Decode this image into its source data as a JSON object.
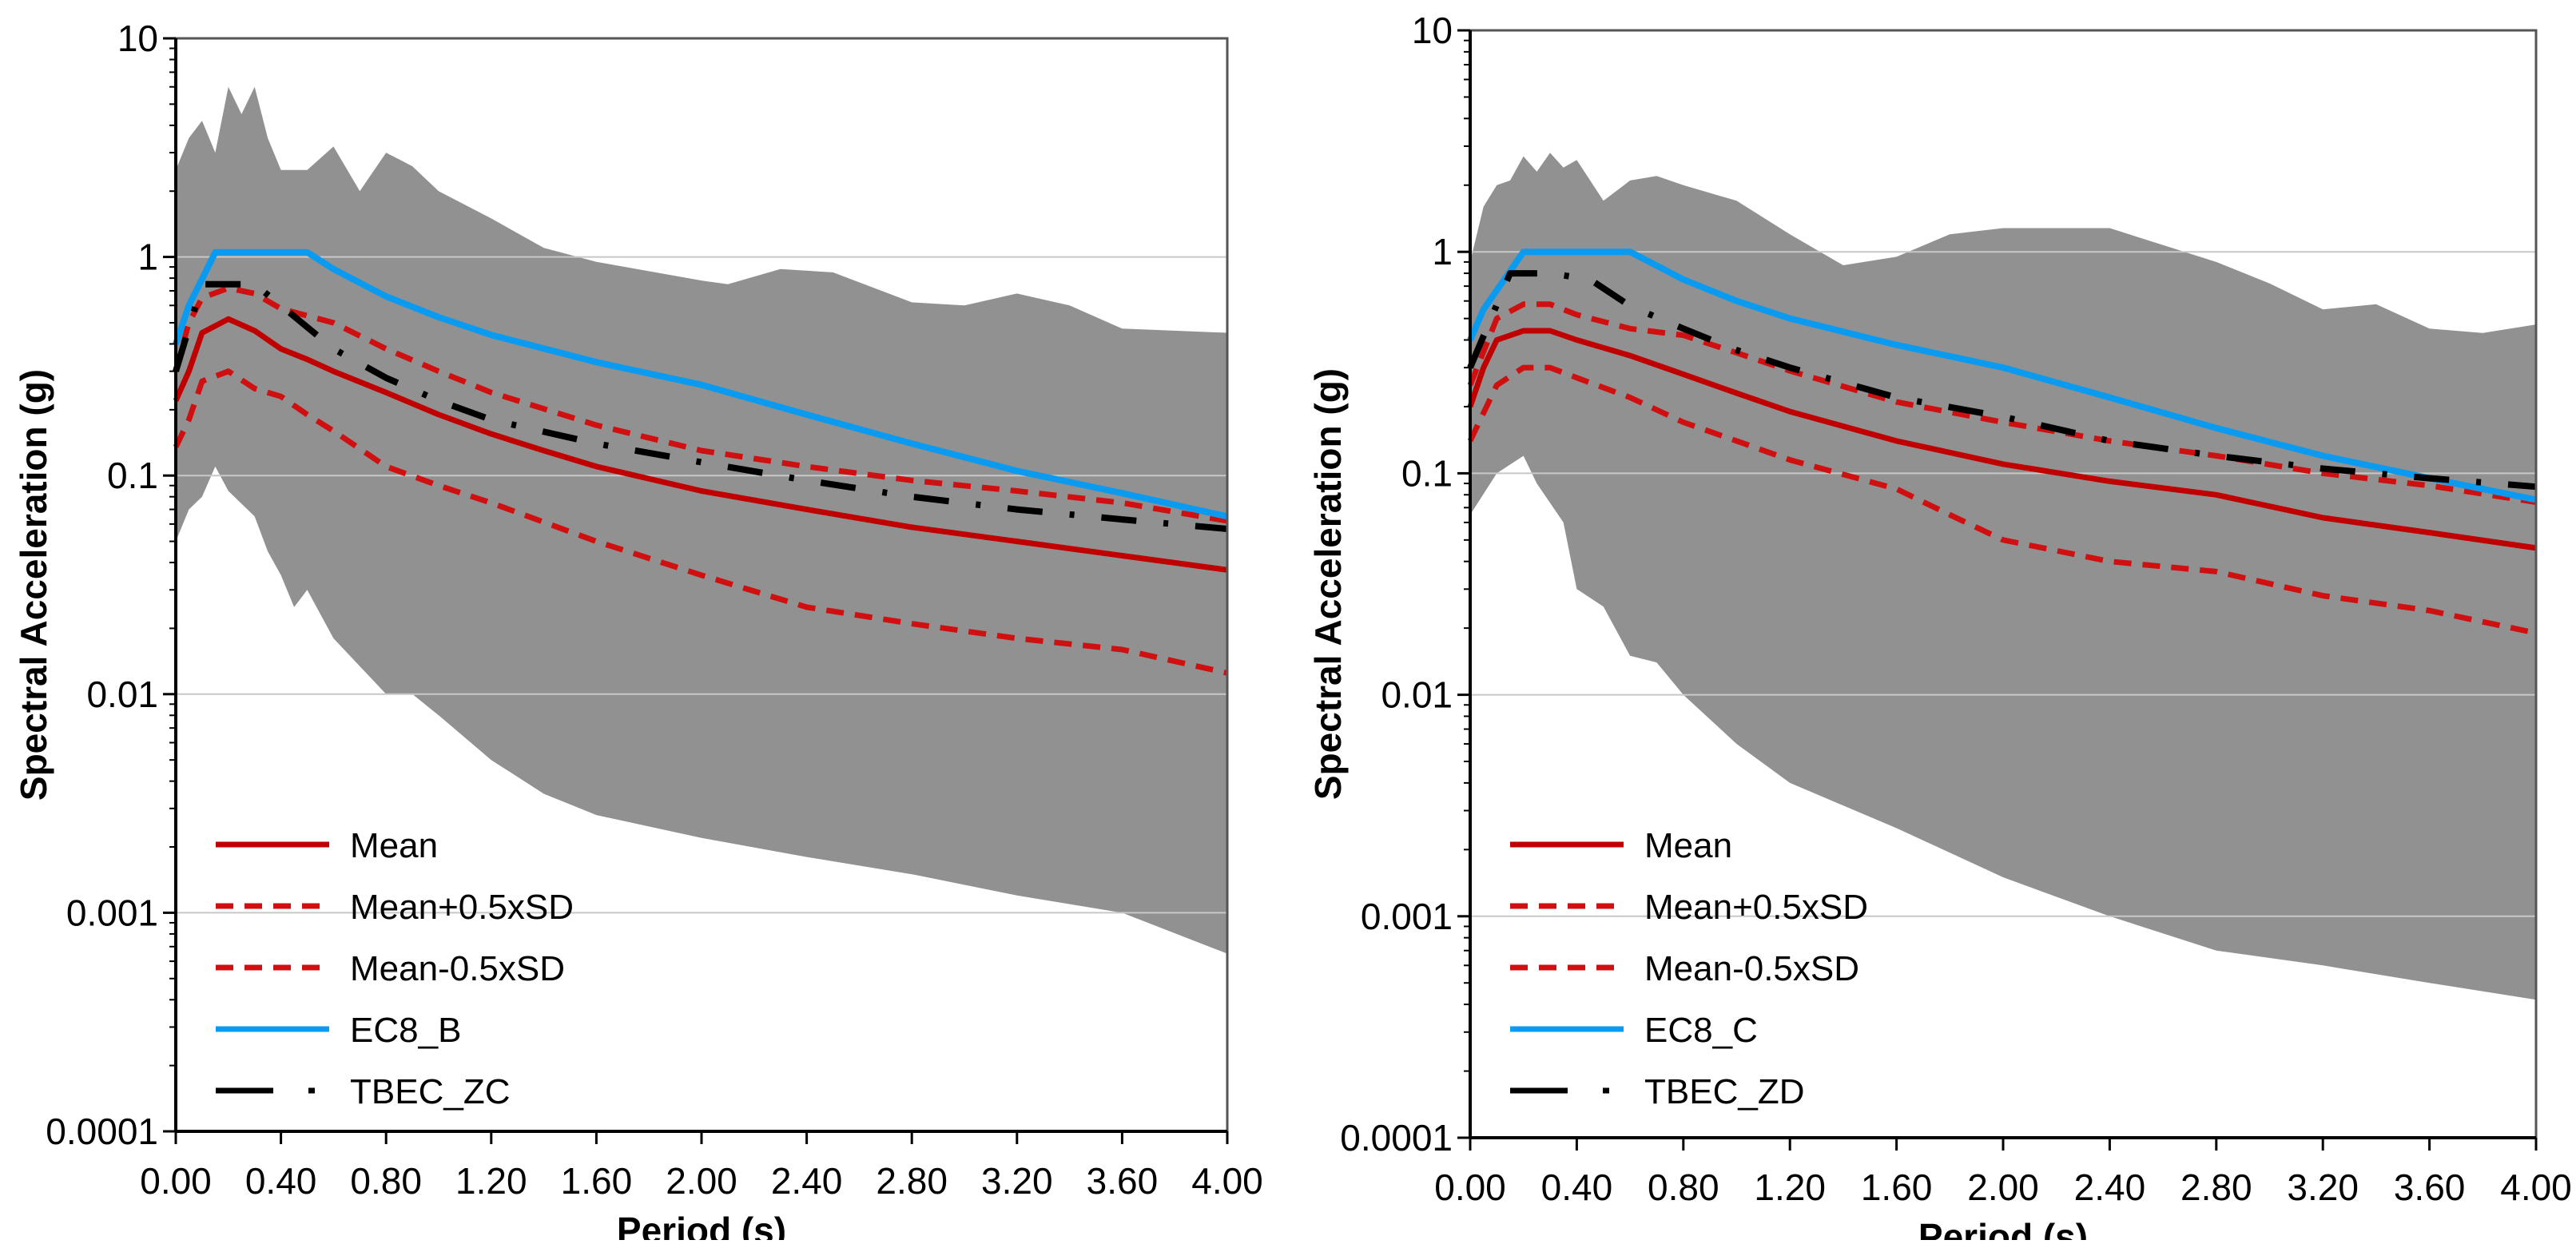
{
  "chart_data": [
    {
      "type": "line",
      "xlabel": "Period (s)",
      "ylabel": "Spectral Acceleration (g)",
      "xlim": [
        0,
        4
      ],
      "ylim": [
        0.0001,
        10
      ],
      "yscale": "log",
      "x_ticks": [
        "0.00",
        "0.40",
        "0.80",
        "1.20",
        "1.60",
        "2.00",
        "2.40",
        "2.80",
        "3.20",
        "3.60",
        "4.00"
      ],
      "y_ticks": [
        "0.0001",
        "0.001",
        "0.01",
        "0.1",
        "1",
        "10"
      ],
      "grid": "horizontal decades",
      "legend_position": "bottom-left",
      "envelope": {
        "upper": [
          [
            0,
            2.5
          ],
          [
            0.05,
            3.5
          ],
          [
            0.1,
            4.2
          ],
          [
            0.15,
            3.0
          ],
          [
            0.2,
            6.0
          ],
          [
            0.25,
            4.5
          ],
          [
            0.3,
            6.0
          ],
          [
            0.35,
            3.5
          ],
          [
            0.4,
            2.5
          ],
          [
            0.5,
            2.5
          ],
          [
            0.6,
            3.2
          ],
          [
            0.7,
            2.0
          ],
          [
            0.8,
            3.0
          ],
          [
            0.9,
            2.6
          ],
          [
            1.0,
            2.0
          ],
          [
            1.2,
            1.5
          ],
          [
            1.4,
            1.1
          ],
          [
            1.6,
            0.95
          ],
          [
            2.0,
            0.78
          ],
          [
            2.1,
            0.75
          ],
          [
            2.3,
            0.88
          ],
          [
            2.5,
            0.85
          ],
          [
            2.8,
            0.62
          ],
          [
            3.0,
            0.6
          ],
          [
            3.2,
            0.68
          ],
          [
            3.4,
            0.6
          ],
          [
            3.6,
            0.47
          ],
          [
            4.0,
            0.45
          ]
        ],
        "lower": [
          [
            0,
            0.05
          ],
          [
            0.05,
            0.07
          ],
          [
            0.1,
            0.08
          ],
          [
            0.15,
            0.11
          ],
          [
            0.2,
            0.085
          ],
          [
            0.3,
            0.065
          ],
          [
            0.35,
            0.045
          ],
          [
            0.4,
            0.035
          ],
          [
            0.45,
            0.025
          ],
          [
            0.5,
            0.03
          ],
          [
            0.6,
            0.018
          ],
          [
            0.8,
            0.01
          ],
          [
            0.9,
            0.01
          ],
          [
            1.0,
            0.008
          ],
          [
            1.2,
            0.005
          ],
          [
            1.4,
            0.0035
          ],
          [
            1.6,
            0.0028
          ],
          [
            2.0,
            0.0022
          ],
          [
            2.4,
            0.0018
          ],
          [
            2.8,
            0.0015
          ],
          [
            3.2,
            0.0012
          ],
          [
            3.6,
            0.001
          ],
          [
            4.0,
            0.00065
          ]
        ]
      },
      "series": [
        {
          "name": "Mean",
          "style": "solid",
          "color": "#c00000",
          "points": [
            [
              0,
              0.22
            ],
            [
              0.05,
              0.3
            ],
            [
              0.1,
              0.45
            ],
            [
              0.2,
              0.52
            ],
            [
              0.3,
              0.46
            ],
            [
              0.4,
              0.38
            ],
            [
              0.5,
              0.34
            ],
            [
              0.6,
              0.3
            ],
            [
              0.8,
              0.24
            ],
            [
              1.0,
              0.19
            ],
            [
              1.2,
              0.155
            ],
            [
              1.4,
              0.13
            ],
            [
              1.6,
              0.11
            ],
            [
              2.0,
              0.085
            ],
            [
              2.4,
              0.07
            ],
            [
              2.8,
              0.058
            ],
            [
              3.2,
              0.05
            ],
            [
              3.6,
              0.043
            ],
            [
              4.0,
              0.037
            ]
          ]
        },
        {
          "name": "Mean+0.5xSD",
          "style": "dashed",
          "color": "#d01010",
          "points": [
            [
              0,
              0.3
            ],
            [
              0.05,
              0.5
            ],
            [
              0.1,
              0.65
            ],
            [
              0.2,
              0.72
            ],
            [
              0.3,
              0.68
            ],
            [
              0.4,
              0.58
            ],
            [
              0.6,
              0.5
            ],
            [
              0.8,
              0.38
            ],
            [
              1.0,
              0.3
            ],
            [
              1.2,
              0.24
            ],
            [
              1.6,
              0.17
            ],
            [
              2.0,
              0.13
            ],
            [
              2.4,
              0.11
            ],
            [
              2.8,
              0.095
            ],
            [
              3.2,
              0.085
            ],
            [
              3.6,
              0.075
            ],
            [
              4.0,
              0.062
            ]
          ]
        },
        {
          "name": "Mean-0.5xSD",
          "style": "dashed",
          "color": "#d01010",
          "points": [
            [
              0,
              0.135
            ],
            [
              0.05,
              0.18
            ],
            [
              0.1,
              0.27
            ],
            [
              0.2,
              0.3
            ],
            [
              0.3,
              0.25
            ],
            [
              0.4,
              0.23
            ],
            [
              0.5,
              0.19
            ],
            [
              0.6,
              0.16
            ],
            [
              0.8,
              0.11
            ],
            [
              1.0,
              0.09
            ],
            [
              1.2,
              0.075
            ],
            [
              1.6,
              0.05
            ],
            [
              2.0,
              0.035
            ],
            [
              2.4,
              0.025
            ],
            [
              2.8,
              0.021
            ],
            [
              3.2,
              0.018
            ],
            [
              3.6,
              0.016
            ],
            [
              4.0,
              0.0125
            ]
          ]
        },
        {
          "name": "EC8_B",
          "style": "solid",
          "color": "#0a9bf0",
          "points": [
            [
              0,
              0.4
            ],
            [
              0.05,
              0.6
            ],
            [
              0.15,
              1.05
            ],
            [
              0.5,
              1.05
            ],
            [
              0.6,
              0.88
            ],
            [
              0.8,
              0.66
            ],
            [
              1.0,
              0.53
            ],
            [
              1.2,
              0.44
            ],
            [
              1.6,
              0.33
            ],
            [
              2.0,
              0.26
            ],
            [
              2.4,
              0.19
            ],
            [
              2.8,
              0.14
            ],
            [
              3.2,
              0.105
            ],
            [
              3.6,
              0.083
            ],
            [
              4.0,
              0.065
            ]
          ]
        },
        {
          "name": "TBEC_ZC",
          "style": "dashdot",
          "color": "#000000",
          "points": [
            [
              0,
              0.3
            ],
            [
              0.1,
              0.75
            ],
            [
              0.3,
              0.75
            ],
            [
              0.4,
              0.6
            ],
            [
              0.6,
              0.38
            ],
            [
              0.8,
              0.28
            ],
            [
              1.0,
              0.22
            ],
            [
              1.2,
              0.18
            ],
            [
              1.6,
              0.14
            ],
            [
              2.0,
              0.115
            ],
            [
              2.4,
              0.095
            ],
            [
              2.8,
              0.08
            ],
            [
              3.2,
              0.07
            ],
            [
              3.6,
              0.063
            ],
            [
              4.0,
              0.057
            ]
          ]
        }
      ]
    },
    {
      "type": "line",
      "xlabel": "Period (s)",
      "ylabel": "Spectral Acceleration (g)",
      "xlim": [
        0,
        4
      ],
      "ylim": [
        0.0001,
        10
      ],
      "yscale": "log",
      "x_ticks": [
        "0.00",
        "0.40",
        "0.80",
        "1.20",
        "1.60",
        "2.00",
        "2.40",
        "2.80",
        "3.20",
        "3.60",
        "4.00"
      ],
      "y_ticks": [
        "0.0001",
        "0.001",
        "0.01",
        "0.1",
        "1",
        "10"
      ],
      "grid": "horizontal decades",
      "legend_position": "bottom-left",
      "envelope": {
        "upper": [
          [
            0,
            0.9
          ],
          [
            0.05,
            1.6
          ],
          [
            0.1,
            2.0
          ],
          [
            0.15,
            2.1
          ],
          [
            0.2,
            2.7
          ],
          [
            0.25,
            2.3
          ],
          [
            0.3,
            2.8
          ],
          [
            0.35,
            2.4
          ],
          [
            0.4,
            2.6
          ],
          [
            0.5,
            1.7
          ],
          [
            0.6,
            2.1
          ],
          [
            0.7,
            2.2
          ],
          [
            0.8,
            2.0
          ],
          [
            1.0,
            1.7
          ],
          [
            1.2,
            1.2
          ],
          [
            1.4,
            0.87
          ],
          [
            1.6,
            0.95
          ],
          [
            1.8,
            1.2
          ],
          [
            2.0,
            1.28
          ],
          [
            2.4,
            1.28
          ],
          [
            2.8,
            0.9
          ],
          [
            3.0,
            0.72
          ],
          [
            3.2,
            0.55
          ],
          [
            3.4,
            0.58
          ],
          [
            3.6,
            0.45
          ],
          [
            3.8,
            0.43
          ],
          [
            4.0,
            0.47
          ]
        ],
        "lower": [
          [
            0,
            0.065
          ],
          [
            0.1,
            0.1
          ],
          [
            0.2,
            0.12
          ],
          [
            0.25,
            0.09
          ],
          [
            0.35,
            0.06
          ],
          [
            0.4,
            0.03
          ],
          [
            0.5,
            0.025
          ],
          [
            0.6,
            0.015
          ],
          [
            0.7,
            0.014
          ],
          [
            0.8,
            0.01
          ],
          [
            1.0,
            0.006
          ],
          [
            1.2,
            0.004
          ],
          [
            1.6,
            0.0025
          ],
          [
            2.0,
            0.0015
          ],
          [
            2.4,
            0.001
          ],
          [
            2.8,
            0.0007
          ],
          [
            3.2,
            0.0006
          ],
          [
            3.6,
            0.0005
          ],
          [
            4.0,
            0.00042
          ]
        ]
      },
      "series": [
        {
          "name": "Mean",
          "style": "solid",
          "color": "#c00000",
          "points": [
            [
              0,
              0.2
            ],
            [
              0.05,
              0.3
            ],
            [
              0.1,
              0.4
            ],
            [
              0.2,
              0.44
            ],
            [
              0.3,
              0.44
            ],
            [
              0.4,
              0.4
            ],
            [
              0.6,
              0.34
            ],
            [
              0.8,
              0.28
            ],
            [
              1.0,
              0.23
            ],
            [
              1.2,
              0.19
            ],
            [
              1.6,
              0.14
            ],
            [
              2.0,
              0.11
            ],
            [
              2.4,
              0.092
            ],
            [
              2.8,
              0.08
            ],
            [
              3.2,
              0.063
            ],
            [
              3.6,
              0.054
            ],
            [
              4.0,
              0.046
            ]
          ]
        },
        {
          "name": "Mean+0.5xSD",
          "style": "dashed",
          "color": "#d01010",
          "points": [
            [
              0,
              0.25
            ],
            [
              0.1,
              0.5
            ],
            [
              0.2,
              0.58
            ],
            [
              0.3,
              0.58
            ],
            [
              0.4,
              0.52
            ],
            [
              0.6,
              0.45
            ],
            [
              0.8,
              0.42
            ],
            [
              1.0,
              0.35
            ],
            [
              1.2,
              0.29
            ],
            [
              1.6,
              0.21
            ],
            [
              2.0,
              0.17
            ],
            [
              2.4,
              0.14
            ],
            [
              2.8,
              0.12
            ],
            [
              3.2,
              0.1
            ],
            [
              3.6,
              0.088
            ],
            [
              4.0,
              0.074
            ]
          ]
        },
        {
          "name": "Mean-0.5xSD",
          "style": "dashed",
          "color": "#d01010",
          "points": [
            [
              0,
              0.14
            ],
            [
              0.1,
              0.25
            ],
            [
              0.2,
              0.3
            ],
            [
              0.3,
              0.3
            ],
            [
              0.4,
              0.27
            ],
            [
              0.6,
              0.22
            ],
            [
              0.8,
              0.17
            ],
            [
              1.0,
              0.14
            ],
            [
              1.2,
              0.115
            ],
            [
              1.6,
              0.085
            ],
            [
              1.8,
              0.065
            ],
            [
              2.0,
              0.05
            ],
            [
              2.4,
              0.04
            ],
            [
              2.8,
              0.036
            ],
            [
              3.2,
              0.028
            ],
            [
              3.6,
              0.024
            ],
            [
              4.0,
              0.019
            ]
          ]
        },
        {
          "name": "EC8_C",
          "style": "solid",
          "color": "#0a9bf0",
          "points": [
            [
              0,
              0.4
            ],
            [
              0.05,
              0.55
            ],
            [
              0.2,
              1.0
            ],
            [
              0.6,
              1.0
            ],
            [
              0.8,
              0.75
            ],
            [
              1.0,
              0.6
            ],
            [
              1.2,
              0.5
            ],
            [
              1.6,
              0.38
            ],
            [
              2.0,
              0.3
            ],
            [
              2.4,
              0.22
            ],
            [
              2.8,
              0.16
            ],
            [
              3.2,
              0.12
            ],
            [
              3.6,
              0.095
            ],
            [
              4.0,
              0.076
            ]
          ]
        },
        {
          "name": "TBEC_ZD",
          "style": "dashdot",
          "color": "#000000",
          "points": [
            [
              0,
              0.3
            ],
            [
              0.15,
              0.8
            ],
            [
              0.3,
              0.8
            ],
            [
              0.45,
              0.75
            ],
            [
              0.6,
              0.57
            ],
            [
              0.8,
              0.45
            ],
            [
              1.0,
              0.36
            ],
            [
              1.2,
              0.3
            ],
            [
              1.6,
              0.22
            ],
            [
              2.0,
              0.18
            ],
            [
              2.4,
              0.14
            ],
            [
              2.8,
              0.12
            ],
            [
              3.2,
              0.105
            ],
            [
              3.6,
              0.095
            ],
            [
              4.0,
              0.087
            ]
          ]
        }
      ]
    }
  ],
  "colors": {
    "envelope": "#919191",
    "grid": "#d0d0d0"
  }
}
